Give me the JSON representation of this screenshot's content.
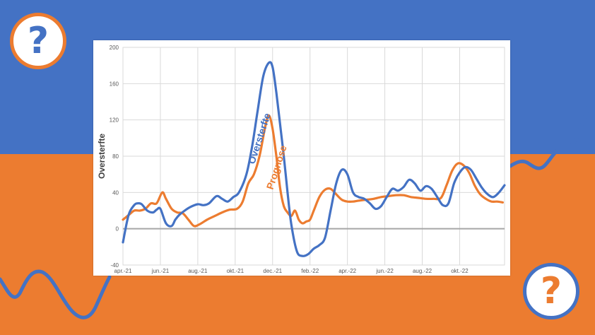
{
  "colors": {
    "top_band": "#4472c4",
    "bottom_band": "#ec7c30",
    "blue_series": "#4472c4",
    "orange_series": "#ec7c30",
    "grid": "#d9d9d9",
    "zero_line": "#a6a6a6"
  },
  "badges": [
    {
      "icon": "question-mark-icon",
      "glyph": "?"
    },
    {
      "icon": "question-mark-icon",
      "glyph": "?"
    }
  ],
  "chart_data": {
    "type": "line",
    "title": "",
    "ylabel": "Oversterfte",
    "xlabel": "",
    "ylim": [
      -40,
      200
    ],
    "yticks": [
      -40,
      0,
      40,
      80,
      120,
      160,
      200
    ],
    "xlim": [
      0,
      20.4
    ],
    "x_unit": "months since apr.-21",
    "xtick_labels": [
      "apr.-21",
      "jun.-21",
      "aug.-21",
      "okt.-21",
      "dec.-21",
      "feb.-22",
      "apr.-22",
      "jun.-22",
      "aug.-22",
      "okt.-22"
    ],
    "grid": true,
    "series": [
      {
        "name": "Oversterfte",
        "color": "#4472c4",
        "x": [
          0,
          0.3,
          0.6,
          0.8,
          1.0,
          1.3,
          1.6,
          1.8,
          2.0,
          2.3,
          2.6,
          2.8,
          3.0,
          3.3,
          3.6,
          4.0,
          4.3,
          4.6,
          5.0,
          5.3,
          5.6,
          5.9,
          6.2,
          6.6,
          6.9,
          7.2,
          7.5,
          7.8,
          8.0,
          8.2,
          8.4,
          8.6,
          8.8,
          9.0,
          9.3,
          9.6,
          9.9,
          10.2,
          10.5,
          10.8,
          11.1,
          11.4,
          11.7,
          12.0,
          12.3,
          12.6,
          12.9,
          13.2,
          13.5,
          13.8,
          14.1,
          14.4,
          14.7,
          15.0,
          15.3,
          15.6,
          15.9,
          16.2,
          16.5,
          16.8,
          17.1,
          17.4,
          17.7,
          18.0,
          18.3,
          18.6,
          18.9,
          19.2,
          19.5,
          19.8,
          20.1,
          20.4
        ],
        "y": [
          -15,
          15,
          26,
          28,
          27,
          20,
          18,
          21,
          22,
          6,
          3,
          10,
          15,
          20,
          24,
          27,
          26,
          28,
          36,
          33,
          30,
          35,
          40,
          60,
          90,
          130,
          168,
          183,
          178,
          150,
          115,
          80,
          40,
          5,
          -25,
          -30,
          -28,
          -22,
          -18,
          -10,
          20,
          50,
          65,
          60,
          40,
          35,
          33,
          28,
          22,
          25,
          35,
          44,
          42,
          46,
          54,
          50,
          42,
          47,
          44,
          35,
          26,
          28,
          50,
          62,
          68,
          65,
          55,
          45,
          38,
          35,
          40,
          48
        ]
      },
      {
        "name": "Prognose",
        "color": "#ec7c30",
        "x": [
          0,
          0.3,
          0.6,
          0.9,
          1.2,
          1.5,
          1.8,
          2.1,
          2.3,
          2.6,
          2.9,
          3.2,
          3.5,
          3.8,
          4.1,
          4.5,
          4.9,
          5.3,
          5.7,
          6.1,
          6.4,
          6.7,
          7.0,
          7.3,
          7.6,
          7.8,
          8.0,
          8.2,
          8.4,
          8.6,
          8.8,
          9.0,
          9.2,
          9.4,
          9.6,
          9.8,
          10.0,
          10.2,
          10.5,
          10.8,
          11.1,
          11.4,
          11.7,
          12.0,
          12.3,
          12.6,
          13.0,
          13.4,
          13.8,
          14.2,
          14.6,
          15.0,
          15.4,
          15.8,
          16.2,
          16.6,
          17.0,
          17.3,
          17.6,
          17.9,
          18.2,
          18.5,
          18.8,
          19.1,
          19.4,
          19.7,
          20.0,
          20.3
        ],
        "y": [
          10,
          15,
          20,
          20,
          22,
          28,
          28,
          40,
          33,
          22,
          18,
          17,
          10,
          3,
          5,
          10,
          14,
          18,
          21,
          22,
          30,
          50,
          60,
          80,
          112,
          125,
          110,
          80,
          45,
          25,
          18,
          14,
          20,
          10,
          6,
          8,
          10,
          20,
          35,
          43,
          44,
          38,
          32,
          30,
          30,
          31,
          32,
          33,
          35,
          36,
          37,
          37,
          35,
          34,
          33,
          33,
          34,
          48,
          64,
          72,
          70,
          62,
          48,
          38,
          33,
          30,
          30,
          29
        ]
      }
    ],
    "annotations": [
      {
        "text": "Oversterfte",
        "color": "#4472c4"
      },
      {
        "text": "Prognose",
        "color": "#ec7c30"
      }
    ]
  }
}
